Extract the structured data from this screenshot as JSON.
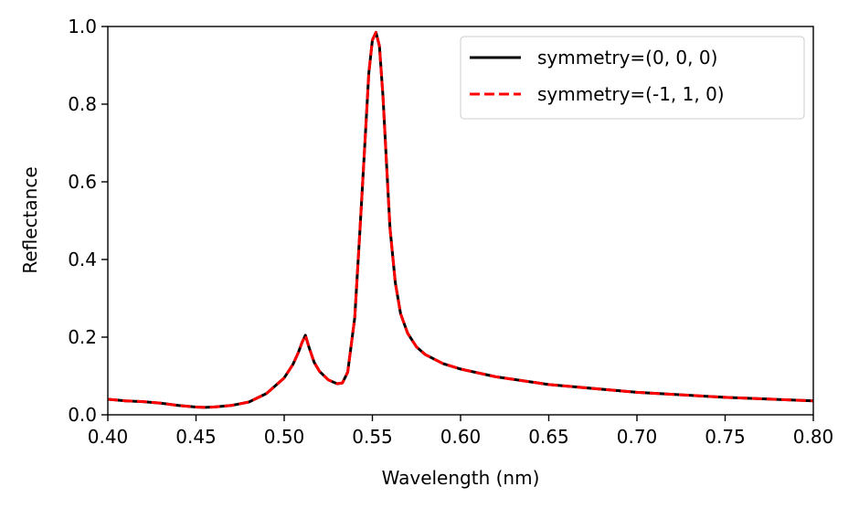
{
  "chart_data": {
    "type": "line",
    "title": "",
    "xlabel": "Wavelength (nm)",
    "ylabel": "Reflectance",
    "xlim": [
      0.4,
      0.8
    ],
    "ylim": [
      0.0,
      1.0
    ],
    "xticks": [
      "0.40",
      "0.45",
      "0.50",
      "0.55",
      "0.60",
      "0.65",
      "0.70",
      "0.75",
      "0.80"
    ],
    "yticks": [
      "0.0",
      "0.2",
      "0.4",
      "0.6",
      "0.8",
      "1.0"
    ],
    "grid": false,
    "legend_position": "top-right",
    "x": [
      0.4,
      0.41,
      0.42,
      0.43,
      0.44,
      0.45,
      0.455,
      0.46,
      0.47,
      0.48,
      0.49,
      0.5,
      0.505,
      0.508,
      0.51,
      0.512,
      0.514,
      0.517,
      0.52,
      0.525,
      0.53,
      0.533,
      0.536,
      0.54,
      0.543,
      0.546,
      0.548,
      0.55,
      0.552,
      0.554,
      0.556,
      0.558,
      0.56,
      0.563,
      0.566,
      0.57,
      0.575,
      0.58,
      0.59,
      0.6,
      0.62,
      0.65,
      0.7,
      0.75,
      0.8
    ],
    "series": [
      {
        "name": "symmetry=(0, 0, 0)",
        "color": "#000000",
        "style": "solid",
        "values": [
          0.04,
          0.036,
          0.034,
          0.03,
          0.024,
          0.02,
          0.019,
          0.02,
          0.024,
          0.033,
          0.055,
          0.095,
          0.13,
          0.16,
          0.185,
          0.205,
          0.175,
          0.135,
          0.112,
          0.09,
          0.08,
          0.082,
          0.11,
          0.25,
          0.48,
          0.72,
          0.88,
          0.965,
          0.985,
          0.95,
          0.82,
          0.65,
          0.48,
          0.34,
          0.26,
          0.21,
          0.175,
          0.155,
          0.132,
          0.118,
          0.098,
          0.078,
          0.058,
          0.045,
          0.036
        ]
      },
      {
        "name": "symmetry=(-1, 1, 0)",
        "color": "#ff0000",
        "style": "dashed",
        "values": [
          0.04,
          0.036,
          0.034,
          0.03,
          0.024,
          0.02,
          0.019,
          0.02,
          0.024,
          0.033,
          0.055,
          0.095,
          0.13,
          0.16,
          0.185,
          0.205,
          0.175,
          0.135,
          0.112,
          0.09,
          0.08,
          0.082,
          0.11,
          0.25,
          0.48,
          0.72,
          0.88,
          0.965,
          0.985,
          0.95,
          0.82,
          0.65,
          0.48,
          0.34,
          0.26,
          0.21,
          0.175,
          0.155,
          0.132,
          0.118,
          0.098,
          0.078,
          0.058,
          0.045,
          0.036
        ]
      }
    ]
  }
}
